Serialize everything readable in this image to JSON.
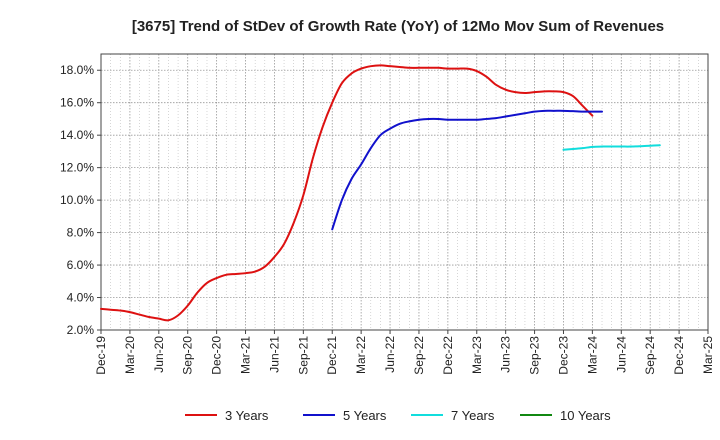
{
  "chart_data": {
    "type": "line",
    "title": "[3675]  Trend of StDev of Growth Rate (YoY) of 12Mo Mov Sum of Revenues",
    "xlabel": "",
    "ylabel": "",
    "x_ticks": [
      "Dec-19",
      "Mar-20",
      "Jun-20",
      "Sep-20",
      "Dec-20",
      "Mar-21",
      "Jun-21",
      "Sep-21",
      "Dec-21",
      "Mar-22",
      "Jun-22",
      "Sep-22",
      "Dec-22",
      "Mar-23",
      "Jun-23",
      "Sep-23",
      "Dec-23",
      "Mar-24",
      "Jun-24",
      "Sep-24",
      "Dec-24",
      "Mar-25"
    ],
    "y_ticks": [
      "2.0%",
      "4.0%",
      "6.0%",
      "8.0%",
      "10.0%",
      "12.0%",
      "14.0%",
      "16.0%",
      "18.0%"
    ],
    "ylim": [
      2.0,
      19.0
    ],
    "grid": true,
    "legend_position": "bottom",
    "series": [
      {
        "name": "3 Years",
        "color": "#dd1111",
        "start_index": 0,
        "values": [
          3.3,
          3.25,
          3.2,
          3.1,
          2.95,
          2.8,
          2.7,
          2.6,
          2.9,
          3.5,
          4.3,
          4.9,
          5.2,
          5.4,
          5.45,
          5.5,
          5.6,
          5.9,
          6.5,
          7.3,
          8.6,
          10.3,
          12.6,
          14.5,
          16.0,
          17.2,
          17.8,
          18.1,
          18.25,
          18.3,
          18.25,
          18.2,
          18.15,
          18.15,
          18.15,
          18.15,
          18.1,
          18.1,
          18.1,
          17.95,
          17.6,
          17.1,
          16.8,
          16.65,
          16.6,
          16.65,
          16.7,
          16.7,
          16.65,
          16.4,
          15.8,
          15.2
        ]
      },
      {
        "name": "5 Years",
        "color": "#1111cc",
        "start_index": 24,
        "values": [
          8.2,
          10.0,
          11.3,
          12.2,
          13.2,
          14.0,
          14.4,
          14.7,
          14.85,
          14.95,
          15.0,
          15.0,
          14.95,
          14.95,
          14.95,
          14.95,
          15.0,
          15.05,
          15.15,
          15.25,
          15.35,
          15.45,
          15.5,
          15.5,
          15.5,
          15.48,
          15.45,
          15.45,
          15.45
        ]
      },
      {
        "name": "7 Years",
        "color": "#11dddd",
        "start_index": 48,
        "values": [
          13.1,
          13.15,
          13.2,
          13.28,
          13.3,
          13.3,
          13.3,
          13.3,
          13.32,
          13.35,
          13.38
        ]
      },
      {
        "name": "10 Years",
        "color": "#118811",
        "start_index": null,
        "values": []
      }
    ]
  }
}
